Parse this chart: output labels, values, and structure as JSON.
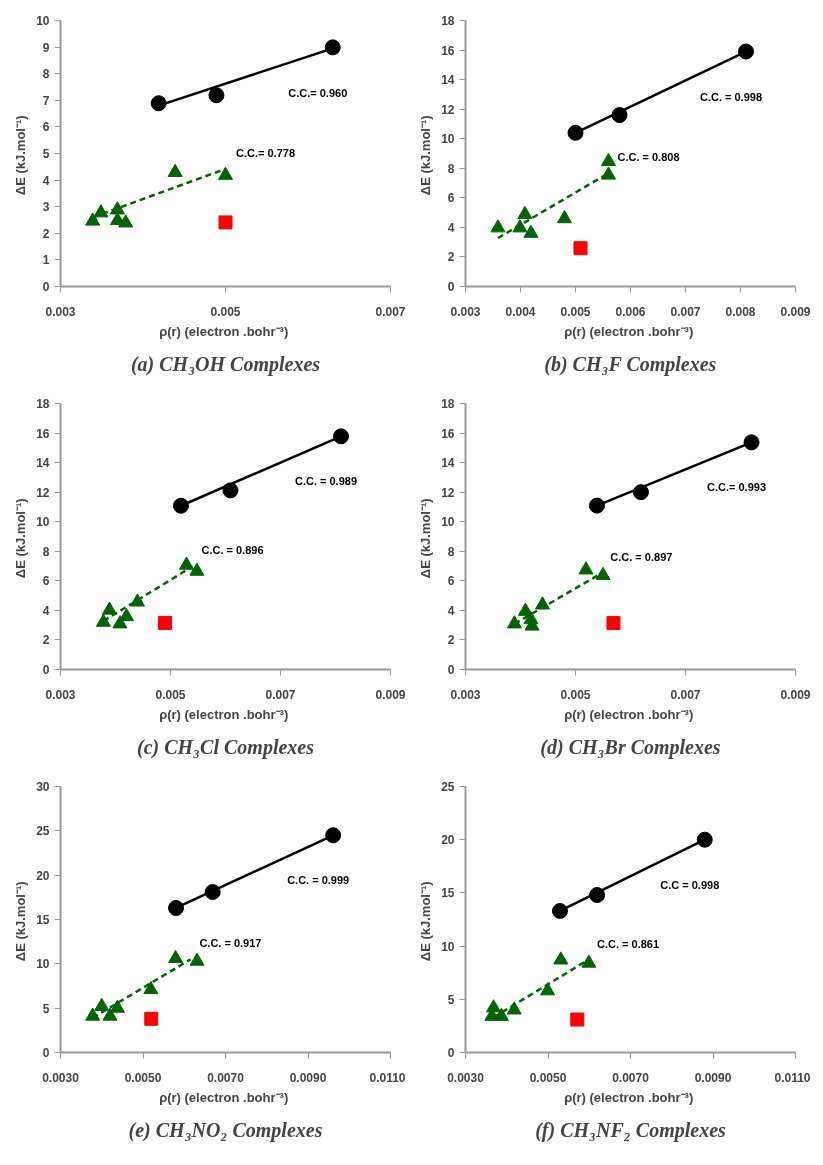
{
  "chart_data": [
    {
      "type": "scatter",
      "title": "(a) CH₃OH Complexes",
      "xlabel": "ρ(r)  (electron .bohr⁻³)",
      "ylabel": "ΔE  (kJ.mol⁻¹)",
      "xlim": [
        0.003,
        0.007
      ],
      "xticks": [
        0.003,
        0.005,
        0.007
      ],
      "ylim": [
        0,
        10
      ],
      "yticks": [
        0,
        1,
        2,
        3,
        4,
        5,
        6,
        7,
        8,
        9,
        10
      ],
      "grid": false,
      "series": [
        {
          "type": "line",
          "color": "#000000",
          "line_style": "solid",
          "marker": "none",
          "x": [
            0.00419,
            0.0063
          ],
          "values": [
            6.8,
            8.95
          ]
        },
        {
          "type": "line",
          "color": "#006400",
          "line_style": "dashed",
          "marker": "none",
          "x": [
            0.00339,
            0.005
          ],
          "values": [
            2.6,
            4.42
          ]
        },
        {
          "type": "scatter",
          "color": "#000000",
          "marker": "circle",
          "x": [
            0.00419,
            0.00489,
            0.0063
          ],
          "values": [
            6.89,
            7.19,
            8.99
          ]
        },
        {
          "type": "scatter",
          "color": "#006400",
          "marker": "triangle",
          "x": [
            0.00339,
            0.00349,
            0.00369,
            0.00369,
            0.00379,
            0.00439,
            0.005
          ],
          "values": [
            2.46,
            2.77,
            2.88,
            2.48,
            2.39,
            4.29,
            4.18
          ]
        },
        {
          "type": "scatter",
          "color": "#ff0000",
          "marker": "square",
          "x": [
            0.005
          ],
          "values": [
            2.41
          ]
        }
      ],
      "annotations": [
        "C.C.= 0.960",
        "C.C.= 0.778"
      ]
    },
    {
      "type": "scatter",
      "title": "(b) CH₃F Complexes",
      "xlabel": "ρ(r)  (electron .bohr⁻³)",
      "ylabel": "ΔE  (kJ.mol⁻¹)",
      "xlim": [
        0.003,
        0.009
      ],
      "xticks": [
        0.003,
        0.004,
        0.005,
        0.006,
        0.007,
        0.008,
        0.009
      ],
      "ylim": [
        0,
        18
      ],
      "yticks": [
        0,
        2,
        4,
        6,
        8,
        10,
        12,
        14,
        16,
        18
      ],
      "grid": false,
      "series": [
        {
          "type": "line",
          "color": "#000000",
          "line_style": "solid",
          "marker": "none",
          "x": [
            0.005,
            0.0081
          ],
          "values": [
            10.4,
            15.9
          ]
        },
        {
          "type": "line",
          "color": "#006400",
          "line_style": "dashed",
          "marker": "none",
          "x": [
            0.00359,
            0.0056
          ],
          "values": [
            3.28,
            7.67
          ]
        },
        {
          "type": "scatter",
          "color": "#000000",
          "marker": "circle",
          "x": [
            0.005,
            0.0058,
            0.0081
          ],
          "values": [
            10.4,
            11.6,
            15.9
          ]
        },
        {
          "type": "scatter",
          "color": "#006400",
          "marker": "triangle",
          "x": [
            0.00359,
            0.00399,
            0.00408,
            0.00419,
            0.0048,
            0.0056,
            0.0056
          ],
          "values": [
            3.97,
            3.97,
            4.88,
            3.6,
            4.59,
            8.46,
            7.54
          ]
        },
        {
          "type": "scatter",
          "color": "#ff0000",
          "marker": "square",
          "x": [
            0.00509
          ],
          "values": [
            2.59
          ]
        }
      ],
      "annotations": [
        "C.C. = 0.998",
        "C.C. = 0.808"
      ]
    },
    {
      "type": "scatter",
      "title": "(c) CH₃Cl Complexes",
      "xlabel": "ρ(r)  (electron .bohr⁻³)",
      "ylabel": "ΔE  (kJ.mol⁻¹)",
      "xlim": [
        0.003,
        0.009
      ],
      "xticks": [
        0.003,
        0.005,
        0.007,
        0.009
      ],
      "ylim": [
        0,
        18
      ],
      "yticks": [
        0,
        2,
        4,
        6,
        8,
        10,
        12,
        14,
        16,
        18
      ],
      "grid": false,
      "series": [
        {
          "type": "line",
          "color": "#000000",
          "line_style": "solid",
          "marker": "none",
          "x": [
            0.00519,
            0.0081
          ],
          "values": [
            11.08,
            15.78
          ]
        },
        {
          "type": "line",
          "color": "#006400",
          "line_style": "dashed",
          "marker": "none",
          "x": [
            0.00378,
            0.0054
          ],
          "values": [
            3.28,
            6.97
          ]
        },
        {
          "type": "scatter",
          "color": "#000000",
          "marker": "circle",
          "x": [
            0.00519,
            0.00609,
            0.0081
          ],
          "values": [
            11.08,
            12.12,
            15.78
          ]
        },
        {
          "type": "scatter",
          "color": "#006400",
          "marker": "triangle",
          "x": [
            0.00378,
            0.00389,
            0.00408,
            0.0042,
            0.0044,
            0.00529,
            0.00548
          ],
          "values": [
            3.2,
            4.02,
            3.09,
            3.58,
            4.57,
            7.06,
            6.65
          ]
        },
        {
          "type": "scatter",
          "color": "#ff0000",
          "marker": "square",
          "x": [
            0.0049
          ],
          "values": [
            3.15
          ]
        }
      ],
      "annotations": [
        "C.C. = 0.989",
        "C.C. = 0.896"
      ]
    },
    {
      "type": "scatter",
      "title": "(d) CH₃Br Complexes",
      "xlabel": "ρ(r)  (electron .bohr⁻³)",
      "ylabel": "ΔE  (kJ.mol⁻¹)",
      "xlim": [
        0.003,
        0.009
      ],
      "xticks": [
        0.003,
        0.005,
        0.007,
        0.009
      ],
      "ylim": [
        0,
        18
      ],
      "yticks": [
        0,
        2,
        4,
        6,
        8,
        10,
        12,
        14,
        16,
        18
      ],
      "grid": false,
      "series": [
        {
          "type": "line",
          "color": "#000000",
          "line_style": "solid",
          "marker": "none",
          "x": [
            0.00539,
            0.0082
          ],
          "values": [
            11.09,
            15.37
          ]
        },
        {
          "type": "line",
          "color": "#006400",
          "line_style": "dashed",
          "marker": "none",
          "x": [
            0.00389,
            0.00547
          ],
          "values": [
            3.09,
            6.51
          ]
        },
        {
          "type": "scatter",
          "color": "#000000",
          "marker": "circle",
          "x": [
            0.00539,
            0.00619,
            0.0082
          ],
          "values": [
            11.09,
            12.0,
            15.37
          ]
        },
        {
          "type": "scatter",
          "color": "#006400",
          "marker": "triangle",
          "x": [
            0.00389,
            0.00409,
            0.00419,
            0.00421,
            0.0044,
            0.00519,
            0.0055
          ],
          "values": [
            3.09,
            3.94,
            3.37,
            2.94,
            4.37,
            6.74,
            6.37
          ]
        },
        {
          "type": "scatter",
          "color": "#ff0000",
          "marker": "square",
          "x": [
            0.00569
          ],
          "values": [
            3.14
          ]
        }
      ],
      "annotations": [
        "C.C.= 0.993",
        "C.C. = 0.897"
      ]
    },
    {
      "type": "scatter",
      "title": "(e) CH₃NO₂ Complexes",
      "xlabel": "ρ(r)  (electron .bohr⁻³)",
      "ylabel": "ΔE  (kJ.mol⁻¹)",
      "xlim": [
        0.003,
        0.011
      ],
      "xticks": [
        {
          "value": 0.003,
          "label": "0.0030"
        },
        {
          "value": 0.005,
          "label": "0.0050"
        },
        {
          "value": 0.007,
          "label": "0.0070"
        },
        {
          "value": 0.009,
          "label": "0.0090"
        },
        {
          "value": 0.011,
          "label": "0.0110"
        }
      ],
      "ylim": [
        0,
        30
      ],
      "yticks": [
        0,
        5,
        10,
        15,
        20,
        25,
        30
      ],
      "grid": false,
      "series": [
        {
          "type": "line",
          "color": "#000000",
          "line_style": "solid",
          "marker": "none",
          "x": [
            0.0058,
            0.00961
          ],
          "values": [
            16.3,
            24.5
          ]
        },
        {
          "type": "line",
          "color": "#006400",
          "line_style": "dashed",
          "marker": "none",
          "x": [
            0.00378,
            0.00615
          ],
          "values": [
            3.9,
            10.5
          ]
        },
        {
          "type": "scatter",
          "color": "#000000",
          "marker": "circle",
          "x": [
            0.0058,
            0.00669,
            0.00961
          ],
          "values": [
            16.3,
            18.1,
            24.5
          ]
        },
        {
          "type": "scatter",
          "color": "#006400",
          "marker": "triangle",
          "x": [
            0.00378,
            0.004,
            0.0042,
            0.00438,
            0.00519,
            0.00579,
            0.00631
          ],
          "values": [
            4.1,
            5.2,
            4.1,
            5.0,
            7.1,
            10.6,
            10.3
          ]
        },
        {
          "type": "scatter",
          "color": "#ff0000",
          "marker": "square",
          "x": [
            0.0052
          ],
          "values": [
            3.8
          ]
        }
      ],
      "annotations": [
        "C.C. = 0.999",
        "C.C. = 0.917"
      ]
    },
    {
      "type": "scatter",
      "title": "(f) CH₃NF₂ Complexes",
      "xlabel": "ρ(r)  (electron .bohr⁻³)",
      "ylabel": "ΔE  (kJ.mol⁻¹)",
      "xlim": [
        0.003,
        0.011
      ],
      "xticks": [
        {
          "value": 0.003,
          "label": "0.0030"
        },
        {
          "value": 0.005,
          "label": "0.0050"
        },
        {
          "value": 0.007,
          "label": "0.0070"
        },
        {
          "value": 0.009,
          "label": "0.0090"
        },
        {
          "value": 0.011,
          "label": "0.0110"
        }
      ],
      "ylim": [
        0,
        25
      ],
      "yticks": [
        0,
        5,
        10,
        15,
        20,
        25
      ],
      "grid": false,
      "series": [
        {
          "type": "line",
          "color": "#000000",
          "line_style": "solid",
          "marker": "none",
          "x": [
            0.00529,
            0.0088
          ],
          "values": [
            13.3,
            20.0
          ]
        },
        {
          "type": "line",
          "color": "#006400",
          "line_style": "dashed",
          "marker": "none",
          "x": [
            0.00368,
            0.00597
          ],
          "values": [
            3.3,
            8.7
          ]
        },
        {
          "type": "scatter",
          "color": "#000000",
          "marker": "circle",
          "x": [
            0.00529,
            0.00619,
            0.0088
          ],
          "values": [
            13.3,
            14.8,
            20.0
          ]
        },
        {
          "type": "scatter",
          "color": "#006400",
          "marker": "triangle",
          "x": [
            0.00368,
            0.00364,
            0.00387,
            0.00418,
            0.00499,
            0.00531,
            0.00599
          ],
          "values": [
            4.2,
            3.4,
            3.4,
            4.0,
            5.8,
            8.7,
            8.4
          ]
        },
        {
          "type": "scatter",
          "color": "#ff0000",
          "marker": "square",
          "x": [
            0.00571
          ],
          "values": [
            3.1
          ]
        }
      ],
      "annotations": [
        "C.C = 0.998",
        "C.C. = 0.861"
      ]
    }
  ]
}
